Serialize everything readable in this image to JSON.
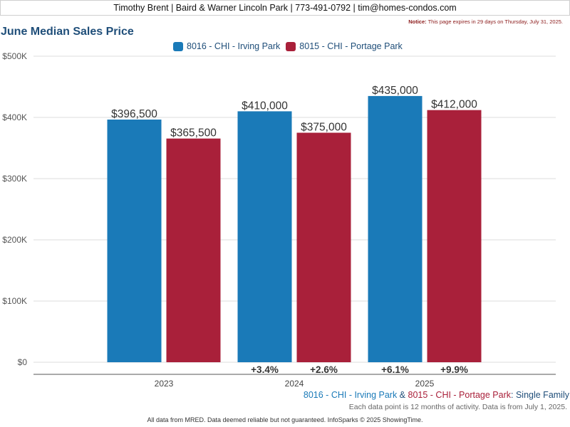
{
  "header": {
    "contact_line": "Timothy Brent | Baird & Warner Lincoln Park | 773-491-0792 | tim@homes-condos.com"
  },
  "notice": {
    "label": "Notice:",
    "text": "This page expires in 29 days on Thursday, July 31, 2025."
  },
  "colors": {
    "irving_park": "#1a7ab8",
    "portage_park": "#a9203a",
    "title": "#1f4e79"
  },
  "legend": {
    "series_1": "8016 - CHI - Irving Park",
    "series_2": "8015 - CHI - Portage Park"
  },
  "chart_data": {
    "type": "bar",
    "title": "June Median Sales Price",
    "categories": [
      "2023",
      "2024",
      "2025"
    ],
    "series": [
      {
        "name": "8016 - CHI - Irving Park",
        "values": [
          396500,
          410000,
          435000
        ],
        "value_labels": [
          "$396,500",
          "$410,000",
          "$435,000"
        ],
        "change_labels": [
          "",
          "+3.4%",
          "+6.1%"
        ]
      },
      {
        "name": "8015 - CHI - Portage Park",
        "values": [
          365500,
          375000,
          412000
        ],
        "value_labels": [
          "$365,500",
          "$375,000",
          "$412,000"
        ],
        "change_labels": [
          "",
          "+2.6%",
          "+9.9%"
        ]
      }
    ],
    "ylim": [
      0,
      500000
    ],
    "yticks": [
      0,
      100000,
      200000,
      300000,
      400000,
      500000
    ],
    "ytick_labels": [
      "$0",
      "$100K",
      "$200K",
      "$300K",
      "$400K",
      "$500K"
    ],
    "xlabel": "",
    "ylabel": "",
    "grid": true,
    "legend_position": "top"
  },
  "subtitle": {
    "area1": "8016 - CHI - Irving Park",
    "amp": " & ",
    "area2": "8015 - CHI - Portage Park",
    "suffix": ": Single Family"
  },
  "data_note": "Each data point is 12 months of activity. Data is from July 1, 2025.",
  "footer": "All data from MRED. Data deemed reliable but not guaranteed. InfoSparks © 2025 ShowingTime."
}
